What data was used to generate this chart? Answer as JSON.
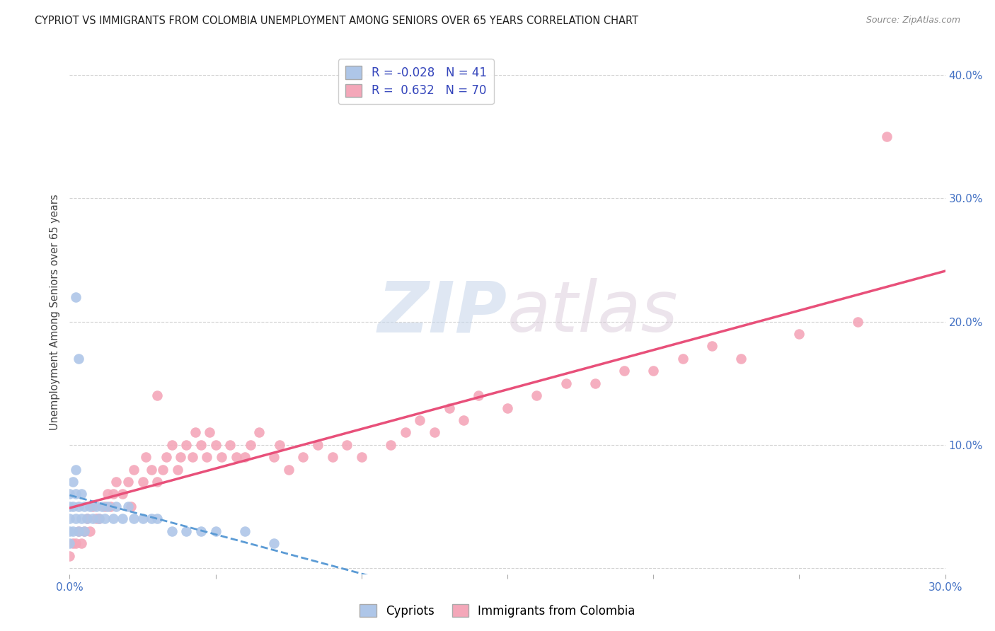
{
  "title": "CYPRIOT VS IMMIGRANTS FROM COLOMBIA UNEMPLOYMENT AMONG SENIORS OVER 65 YEARS CORRELATION CHART",
  "source": "Source: ZipAtlas.com",
  "ylabel": "Unemployment Among Seniors over 65 years",
  "xlim": [
    0.0,
    0.3
  ],
  "ylim": [
    -0.005,
    0.42
  ],
  "xticks": [
    0.0,
    0.05,
    0.1,
    0.15,
    0.2,
    0.25,
    0.3
  ],
  "yticks": [
    0.0,
    0.1,
    0.2,
    0.3,
    0.4
  ],
  "xtick_labels": [
    "0.0%",
    "",
    "",
    "",
    "",
    "",
    "30.0%"
  ],
  "right_ytick_labels": [
    "",
    "10.0%",
    "20.0%",
    "30.0%",
    "40.0%"
  ],
  "grid_color": "#c8c8c8",
  "background_color": "#ffffff",
  "cypriot_color": "#aec6e8",
  "colombia_color": "#f4a7b9",
  "cypriot_line_color": "#5b9bd5",
  "colombia_line_color": "#e8507a",
  "R_cypriot": -0.028,
  "N_cypriot": 41,
  "R_colombia": 0.632,
  "N_colombia": 70,
  "watermark_zip": "ZIP",
  "watermark_atlas": "atlas",
  "legend_label_cypriot": "Cypriots",
  "legend_label_colombia": "Immigrants from Colombia",
  "cypriot_scatter_x": [
    0.0,
    0.0,
    0.0,
    0.0,
    0.0,
    0.001,
    0.001,
    0.001,
    0.002,
    0.002,
    0.002,
    0.003,
    0.003,
    0.004,
    0.004,
    0.005,
    0.005,
    0.006,
    0.007,
    0.008,
    0.009,
    0.01,
    0.011,
    0.012,
    0.013,
    0.015,
    0.016,
    0.018,
    0.02,
    0.022,
    0.025,
    0.028,
    0.03,
    0.035,
    0.04,
    0.045,
    0.05,
    0.06,
    0.07,
    0.002,
    0.003
  ],
  "cypriot_scatter_y": [
    0.02,
    0.03,
    0.04,
    0.05,
    0.06,
    0.03,
    0.05,
    0.07,
    0.04,
    0.06,
    0.08,
    0.03,
    0.05,
    0.04,
    0.06,
    0.03,
    0.05,
    0.04,
    0.05,
    0.04,
    0.05,
    0.04,
    0.05,
    0.04,
    0.05,
    0.04,
    0.05,
    0.04,
    0.05,
    0.04,
    0.04,
    0.04,
    0.04,
    0.03,
    0.03,
    0.03,
    0.03,
    0.03,
    0.02,
    0.22,
    0.17
  ],
  "colombia_scatter_x": [
    0.0,
    0.001,
    0.002,
    0.003,
    0.004,
    0.005,
    0.006,
    0.007,
    0.008,
    0.009,
    0.01,
    0.012,
    0.013,
    0.014,
    0.015,
    0.016,
    0.018,
    0.02,
    0.021,
    0.022,
    0.025,
    0.026,
    0.028,
    0.03,
    0.032,
    0.033,
    0.035,
    0.037,
    0.038,
    0.04,
    0.042,
    0.043,
    0.045,
    0.047,
    0.048,
    0.05,
    0.052,
    0.055,
    0.057,
    0.06,
    0.062,
    0.065,
    0.07,
    0.072,
    0.075,
    0.08,
    0.085,
    0.09,
    0.095,
    0.1,
    0.11,
    0.115,
    0.12,
    0.125,
    0.13,
    0.135,
    0.14,
    0.15,
    0.16,
    0.17,
    0.18,
    0.19,
    0.2,
    0.21,
    0.22,
    0.23,
    0.25,
    0.27,
    0.03,
    0.28
  ],
  "colombia_scatter_y": [
    0.01,
    0.02,
    0.02,
    0.03,
    0.02,
    0.03,
    0.04,
    0.03,
    0.05,
    0.04,
    0.04,
    0.05,
    0.06,
    0.05,
    0.06,
    0.07,
    0.06,
    0.07,
    0.05,
    0.08,
    0.07,
    0.09,
    0.08,
    0.07,
    0.08,
    0.09,
    0.1,
    0.08,
    0.09,
    0.1,
    0.09,
    0.11,
    0.1,
    0.09,
    0.11,
    0.1,
    0.09,
    0.1,
    0.09,
    0.09,
    0.1,
    0.11,
    0.09,
    0.1,
    0.08,
    0.09,
    0.1,
    0.09,
    0.1,
    0.09,
    0.1,
    0.11,
    0.12,
    0.11,
    0.13,
    0.12,
    0.14,
    0.13,
    0.14,
    0.15,
    0.15,
    0.16,
    0.16,
    0.17,
    0.18,
    0.17,
    0.19,
    0.2,
    0.14,
    0.35
  ]
}
